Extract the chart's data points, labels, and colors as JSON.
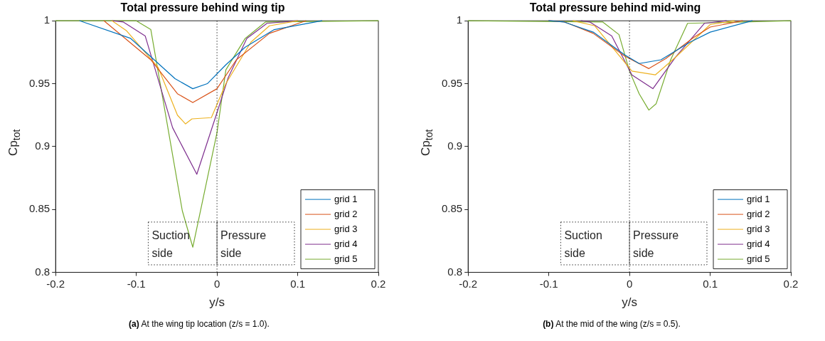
{
  "chart_data": [
    {
      "type": "line",
      "title": "Total pressure behind wing tip",
      "xlabel": "y/s",
      "ylabel": "Cp$_{tot}$",
      "xlim": [
        -0.2,
        0.2
      ],
      "xticks": [
        -0.2,
        -0.1,
        0,
        0.1,
        0.2
      ],
      "ylim": [
        0.8,
        1
      ],
      "yticks": [
        0.8,
        0.85,
        0.9,
        0.95,
        1
      ],
      "grid": false,
      "legend": "bottom right",
      "marker": "none",
      "ref_lines": [
        {
          "axis": "x",
          "value": 0,
          "color": "#000000",
          "line_style": "dotted"
        }
      ],
      "annotations": [
        "Suction side",
        "Pressure side",
        "(a) At the wing tip location (z/s = 1.0)."
      ],
      "series": [
        {
          "name": "grid 1",
          "color": "#0072bd",
          "x": [
            -0.17,
            -0.107,
            -0.052,
            -0.03,
            -0.012,
            0.011,
            0.035,
            0.071,
            0.13
          ],
          "values": [
            1,
            0.986,
            0.954,
            0.946,
            0.95,
            0.965,
            0.979,
            0.993,
            1
          ]
        },
        {
          "name": "grid 2",
          "color": "#d95319",
          "x": [
            -0.14,
            -0.082,
            -0.049,
            -0.03,
            0,
            0.024,
            0.065,
            0.11
          ],
          "values": [
            1,
            0.969,
            0.942,
            0.935,
            0.946,
            0.969,
            0.99,
            1
          ]
        },
        {
          "name": "grid 3",
          "color": "#edb120",
          "x": [
            -0.13,
            -0.112,
            -0.073,
            -0.049,
            -0.039,
            -0.031,
            -0.007,
            0.011,
            0.042,
            0.065,
            0.1
          ],
          "values": [
            1,
            0.992,
            0.963,
            0.925,
            0.918,
            0.922,
            0.923,
            0.95,
            0.983,
            0.996,
            1
          ]
        },
        {
          "name": "grid 4",
          "color": "#7e2f8e",
          "x": [
            -0.13,
            -0.116,
            -0.089,
            -0.055,
            -0.025,
            0,
            0.014,
            0.037,
            0.062,
            0.1
          ],
          "values": [
            1,
            0.999,
            0.988,
            0.915,
            0.878,
            0.927,
            0.955,
            0.986,
            0.998,
            1
          ]
        },
        {
          "name": "grid 5",
          "color": "#77ac30",
          "x": [
            -0.2,
            -0.1,
            -0.082,
            -0.043,
            -0.03,
            0,
            0.011,
            0.035,
            0.06,
            0.2
          ],
          "values": [
            1,
            1,
            0.993,
            0.849,
            0.82,
            0.911,
            0.961,
            0.986,
            0.999,
            1
          ]
        }
      ]
    },
    {
      "type": "line",
      "title": "Total pressure behind mid-wing",
      "xlabel": "y/s",
      "ylabel": "Cp$_{tot}$",
      "xlim": [
        -0.2,
        0.2
      ],
      "xticks": [
        -0.2,
        -0.1,
        0,
        0.1,
        0.2
      ],
      "ylim": [
        0.8,
        1
      ],
      "yticks": [
        0.8,
        0.85,
        0.9,
        0.95,
        1
      ],
      "grid": false,
      "legend": "bottom right",
      "marker": "none",
      "ref_lines": [
        {
          "axis": "x",
          "value": 0,
          "color": "#000000",
          "line_style": "dotted"
        }
      ],
      "annotations": [
        "Suction side",
        "Pressure side",
        "(b) At the mid of the wing (z/s = 0.5)."
      ],
      "series": [
        {
          "name": "grid 1",
          "color": "#0072bd",
          "x": [
            -0.1,
            -0.081,
            -0.045,
            -0.006,
            0.012,
            0.039,
            0.075,
            0.1,
            0.152
          ],
          "values": [
            1,
            0.999,
            0.991,
            0.973,
            0.966,
            0.969,
            0.983,
            0.991,
            1
          ]
        },
        {
          "name": "grid 2",
          "color": "#d95319",
          "x": [
            -0.1,
            -0.08,
            -0.045,
            -0.006,
            0.024,
            0.045,
            0.08,
            0.1,
            0.14
          ],
          "values": [
            1,
            0.999,
            0.99,
            0.972,
            0.962,
            0.97,
            0.987,
            0.995,
            1
          ]
        },
        {
          "name": "grid 3",
          "color": "#edb120",
          "x": [
            -0.07,
            -0.043,
            0.003,
            0.032,
            0.057,
            0.1,
            0.13
          ],
          "values": [
            1,
            0.996,
            0.96,
            0.957,
            0.971,
            0.997,
            1
          ]
        },
        {
          "name": "grid 4",
          "color": "#7e2f8e",
          "x": [
            -0.06,
            -0.049,
            -0.022,
            0.003,
            0.029,
            0.057,
            0.093,
            0.12
          ],
          "values": [
            1,
            0.999,
            0.988,
            0.957,
            0.946,
            0.971,
            0.998,
            1
          ]
        },
        {
          "name": "grid 5",
          "color": "#77ac30",
          "x": [
            -0.2,
            -0.033,
            -0.013,
            0,
            0.012,
            0.024,
            0.033,
            0.051,
            0.072,
            0.2
          ],
          "values": [
            1,
            0.999,
            0.989,
            0.96,
            0.942,
            0.929,
            0.934,
            0.969,
            0.998,
            1
          ]
        }
      ]
    }
  ]
}
